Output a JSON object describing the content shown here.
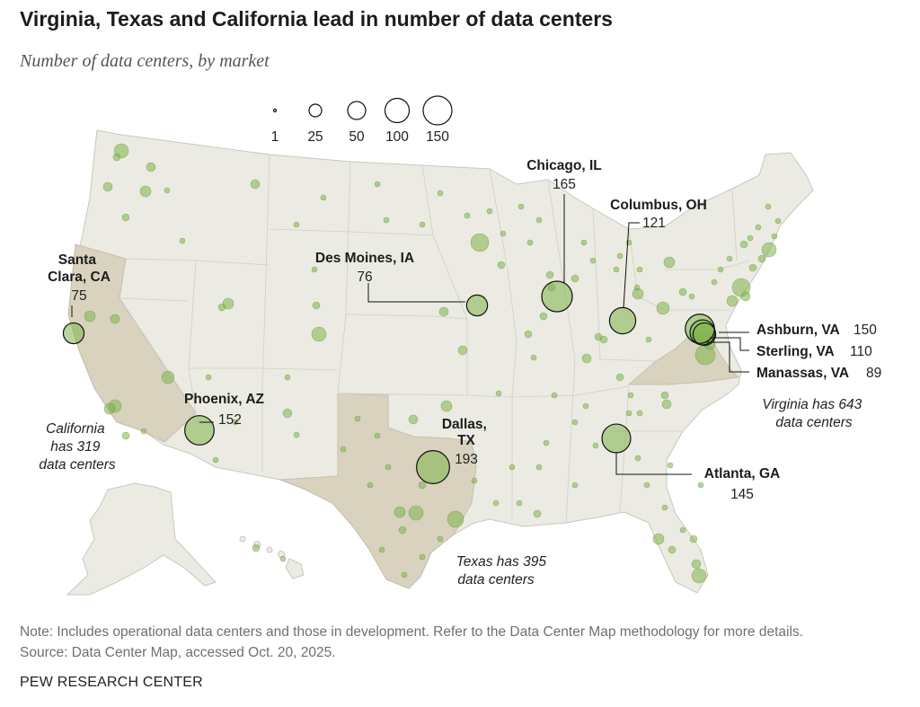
{
  "header": {
    "title": "Virginia, Texas and California lead in number of data centers",
    "subtitle": "Number of data centers, by market"
  },
  "legend": {
    "items": [
      {
        "label": "1",
        "value": 1
      },
      {
        "label": "25",
        "value": 25
      },
      {
        "label": "50",
        "value": 50
      },
      {
        "label": "100",
        "value": 100
      },
      {
        "label": "150",
        "value": 150
      }
    ]
  },
  "markets": [
    {
      "name": "Santa Clara, CA",
      "name_lines": [
        "Santa",
        "Clara, CA"
      ],
      "count": 75
    },
    {
      "name": "Phoenix, AZ",
      "name_lines": [
        "Phoenix, AZ"
      ],
      "count": 152
    },
    {
      "name": "Des Moines, IA",
      "name_lines": [
        "Des Moines, IA"
      ],
      "count": 76
    },
    {
      "name": "Chicago, IL",
      "name_lines": [
        "Chicago, IL"
      ],
      "count": 165
    },
    {
      "name": "Columbus, OH",
      "name_lines": [
        "Columbus, OH"
      ],
      "count": 121
    },
    {
      "name": "Dallas, TX",
      "name_lines": [
        "Dallas,",
        "TX"
      ],
      "count": 193
    },
    {
      "name": "Atlanta, GA",
      "name_lines": [
        "Atlanta, GA"
      ],
      "count": 145
    },
    {
      "name": "Ashburn, VA",
      "name_lines": [
        "Ashburn, VA"
      ],
      "count": 150
    },
    {
      "name": "Sterling, VA",
      "name_lines": [
        "Sterling, VA"
      ],
      "count": 110
    },
    {
      "name": "Manassas, VA",
      "name_lines": [
        "Manassas, VA"
      ],
      "count": 89
    }
  ],
  "state_notes": {
    "california": [
      "California",
      "has 319",
      "data centers"
    ],
    "texas": [
      "Texas has 395",
      "data centers"
    ],
    "virginia": [
      "Virginia has 643",
      "data centers"
    ]
  },
  "highlighted_states": [
    "California",
    "Texas",
    "Virginia"
  ],
  "footer": {
    "note": "Note: Includes operational data centers and those in development. Refer to the Data Center Map methodology for more details.",
    "source": "Source: Data Center Map, accessed Oct. 20, 2025.",
    "brand": "PEW RESEARCH CENTER"
  },
  "colors": {
    "land": "#ecebe3",
    "highlight_state": "#d8d2bf",
    "bubble": "#7fb24a",
    "ring": "#111111"
  }
}
